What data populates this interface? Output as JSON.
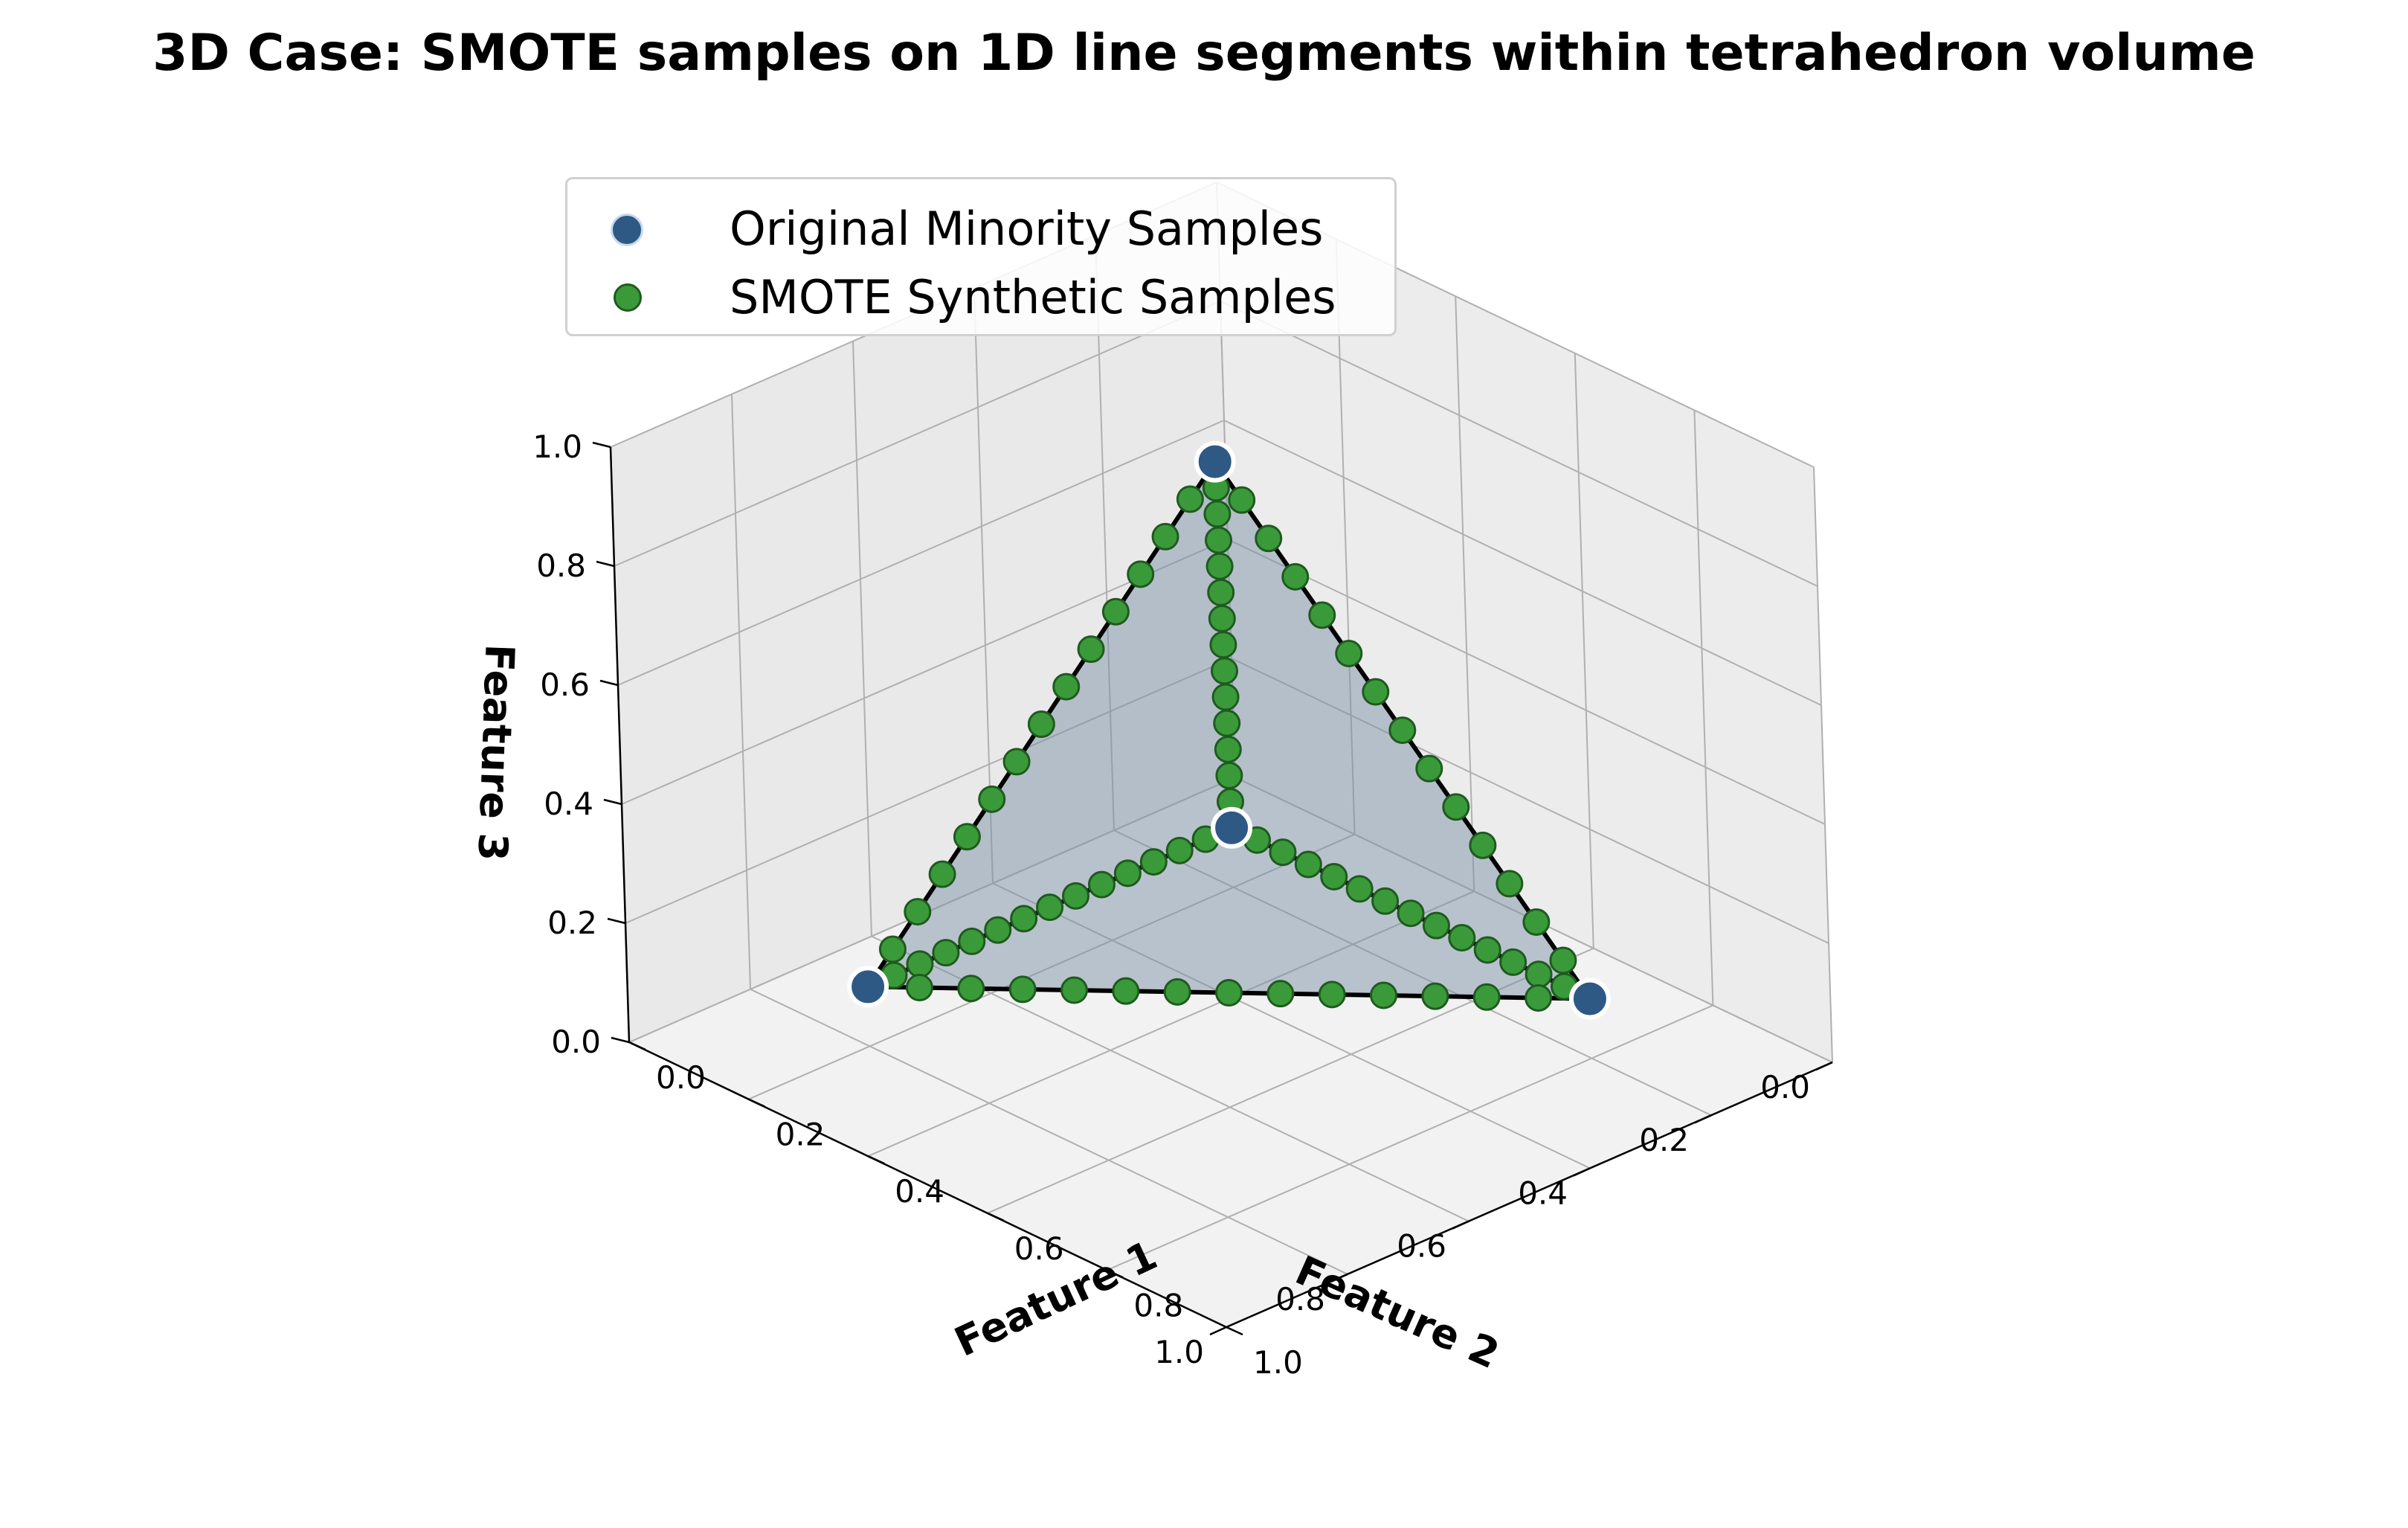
{
  "chart_data": {
    "type": "scatter",
    "projection": "3d",
    "title": "3D Case: SMOTE samples on 1D line segments within tetrahedron volume",
    "axes": {
      "x": {
        "label": "Feature 1",
        "lim": [
          0,
          1
        ],
        "ticks": [
          "0.0",
          "0.2",
          "0.4",
          "0.6",
          "0.8",
          "1.0"
        ]
      },
      "y": {
        "label": "Feature 2",
        "lim": [
          0,
          1
        ],
        "ticks": [
          "0.0",
          "0.2",
          "0.4",
          "0.6",
          "0.8",
          "1.0"
        ]
      },
      "z": {
        "label": "Feature 3",
        "lim": [
          0,
          1
        ],
        "ticks": [
          "0.0",
          "0.2",
          "0.4",
          "0.6",
          "0.8",
          "1.0"
        ]
      }
    },
    "grid": true,
    "legend_position": "upper-left",
    "series": [
      {
        "name": "Original Minority Samples",
        "color": "#2e5984",
        "points": [
          [
            0.2,
            0.2,
            0.1
          ],
          [
            0.8,
            0.2,
            0.1
          ],
          [
            0.2,
            0.8,
            0.1
          ],
          [
            0.4,
            0.4,
            0.9
          ]
        ]
      },
      {
        "name": "SMOTE Synthetic Samples",
        "color": "#3a9a3a",
        "edges": [
          [
            0,
            1
          ],
          [
            0,
            2
          ],
          [
            0,
            3
          ],
          [
            1,
            2
          ],
          [
            1,
            3
          ],
          [
            2,
            3
          ]
        ],
        "samples_per_edge": 13
      }
    ],
    "tetrahedron": {
      "face_color": "#7b8fa6",
      "face_opacity": 0.7,
      "edge_color": "#000000"
    }
  }
}
